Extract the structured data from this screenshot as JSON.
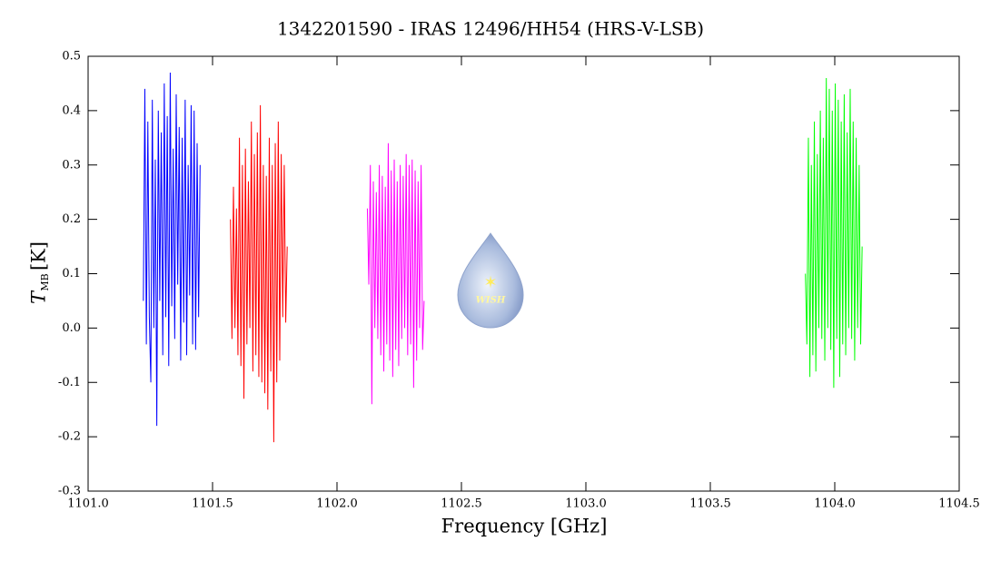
{
  "chart_data": {
    "type": "line",
    "title": "1342201590 - IRAS 12496/HH54 (HRS-V-LSB)",
    "x_label": "Frequency [GHz]",
    "y_label": "T",
    "y_label_sub": "MB",
    "y_label_unit": "[K]",
    "logo_text": "WISH",
    "xlim": [
      1101.0,
      1104.5
    ],
    "ylim": [
      -0.3,
      0.5
    ],
    "xticks": [
      {
        "value": 1101.0,
        "label": "1101.0"
      },
      {
        "value": 1101.5,
        "label": "1101.5"
      },
      {
        "value": 1102.0,
        "label": "1102.0"
      },
      {
        "value": 1102.5,
        "label": "1102.5"
      },
      {
        "value": 1103.0,
        "label": "1103.0"
      },
      {
        "value": 1103.5,
        "label": "1103.5"
      },
      {
        "value": 1104.0,
        "label": "1104.0"
      },
      {
        "value": 1104.5,
        "label": "1104.5"
      }
    ],
    "yticks": [
      {
        "value": -0.3,
        "label": "-0.3"
      },
      {
        "value": -0.2,
        "label": "-0.2"
      },
      {
        "value": -0.1,
        "label": "-0.1"
      },
      {
        "value": 0.0,
        "label": "0.0"
      },
      0.1,
      0.2,
      0.3,
      0.4,
      0.5
    ],
    "series": [
      {
        "color": "#0000ff",
        "x": [
          1101.222,
          1101.228,
          1101.234,
          1101.24,
          1101.246,
          1101.252,
          1101.258,
          1101.264,
          1101.27,
          1101.276,
          1101.282,
          1101.288,
          1101.294,
          1101.3,
          1101.306,
          1101.312,
          1101.318,
          1101.324,
          1101.33,
          1101.336,
          1101.342,
          1101.348,
          1101.354,
          1101.36,
          1101.366,
          1101.372,
          1101.378,
          1101.384,
          1101.39,
          1101.396,
          1101.402,
          1101.408,
          1101.414,
          1101.42,
          1101.426,
          1101.432,
          1101.438,
          1101.444,
          1101.45
        ],
        "values": [
          0.05,
          0.44,
          -0.03,
          0.38,
          0.02,
          -0.1,
          0.42,
          0.0,
          0.31,
          -0.18,
          0.4,
          0.05,
          0.36,
          -0.05,
          0.45,
          0.02,
          0.39,
          -0.07,
          0.47,
          0.04,
          0.33,
          -0.02,
          0.43,
          0.08,
          0.37,
          -0.06,
          0.35,
          0.01,
          0.42,
          -0.05,
          0.3,
          0.06,
          0.41,
          -0.03,
          0.4,
          -0.04,
          0.34,
          0.02,
          0.3
        ]
      },
      {
        "color": "#ff0000",
        "x": [
          1101.572,
          1101.578,
          1101.584,
          1101.59,
          1101.596,
          1101.602,
          1101.608,
          1101.614,
          1101.62,
          1101.626,
          1101.632,
          1101.638,
          1101.644,
          1101.65,
          1101.656,
          1101.662,
          1101.668,
          1101.674,
          1101.68,
          1101.686,
          1101.692,
          1101.698,
          1101.704,
          1101.71,
          1101.716,
          1101.722,
          1101.728,
          1101.734,
          1101.74,
          1101.746,
          1101.752,
          1101.758,
          1101.764,
          1101.77,
          1101.776,
          1101.782,
          1101.788,
          1101.794,
          1101.8
        ],
        "values": [
          0.2,
          -0.02,
          0.26,
          0.0,
          0.22,
          -0.05,
          0.35,
          -0.07,
          0.3,
          -0.13,
          0.33,
          -0.03,
          0.27,
          0.0,
          0.38,
          -0.08,
          0.32,
          -0.05,
          0.36,
          -0.09,
          0.41,
          -0.1,
          0.3,
          -0.12,
          0.28,
          -0.15,
          0.35,
          -0.08,
          0.3,
          -0.21,
          0.34,
          -0.1,
          0.38,
          -0.06,
          0.32,
          0.02,
          0.3,
          0.01,
          0.15
        ]
      },
      {
        "color": "#ff00ff",
        "x": [
          1102.122,
          1102.128,
          1102.134,
          1102.14,
          1102.146,
          1102.152,
          1102.158,
          1102.164,
          1102.17,
          1102.176,
          1102.182,
          1102.188,
          1102.194,
          1102.2,
          1102.206,
          1102.212,
          1102.218,
          1102.224,
          1102.23,
          1102.236,
          1102.242,
          1102.248,
          1102.254,
          1102.26,
          1102.266,
          1102.272,
          1102.278,
          1102.284,
          1102.29,
          1102.296,
          1102.302,
          1102.308,
          1102.314,
          1102.32,
          1102.326,
          1102.332,
          1102.338,
          1102.344,
          1102.35
        ],
        "values": [
          0.22,
          0.08,
          0.3,
          -0.14,
          0.27,
          0.0,
          0.25,
          -0.02,
          0.3,
          -0.05,
          0.28,
          -0.08,
          0.26,
          -0.03,
          0.34,
          -0.06,
          0.29,
          -0.09,
          0.31,
          -0.04,
          0.27,
          -0.07,
          0.3,
          -0.02,
          0.28,
          0.0,
          0.32,
          -0.05,
          0.3,
          -0.03,
          0.31,
          -0.11,
          0.29,
          -0.06,
          0.27,
          0.0,
          0.3,
          -0.04,
          0.05
        ]
      },
      {
        "color": "#00ff00",
        "x": [
          1103.882,
          1103.888,
          1103.894,
          1103.9,
          1103.906,
          1103.912,
          1103.918,
          1103.924,
          1103.93,
          1103.936,
          1103.942,
          1103.948,
          1103.954,
          1103.96,
          1103.966,
          1103.972,
          1103.978,
          1103.984,
          1103.99,
          1103.996,
          1104.002,
          1104.008,
          1104.014,
          1104.02,
          1104.026,
          1104.032,
          1104.038,
          1104.044,
          1104.05,
          1104.056,
          1104.062,
          1104.068,
          1104.074,
          1104.08,
          1104.086,
          1104.092,
          1104.098,
          1104.104,
          1104.11
        ],
        "values": [
          0.1,
          -0.03,
          0.35,
          -0.09,
          0.3,
          -0.05,
          0.38,
          -0.08,
          0.32,
          0.0,
          0.4,
          -0.02,
          0.35,
          -0.06,
          0.46,
          0.0,
          0.44,
          -0.04,
          0.4,
          -0.11,
          0.45,
          -0.02,
          0.42,
          -0.09,
          0.38,
          -0.03,
          0.43,
          -0.05,
          0.36,
          0.0,
          0.44,
          -0.02,
          0.38,
          -0.06,
          0.35,
          0.0,
          0.3,
          -0.03,
          0.15
        ]
      }
    ]
  }
}
